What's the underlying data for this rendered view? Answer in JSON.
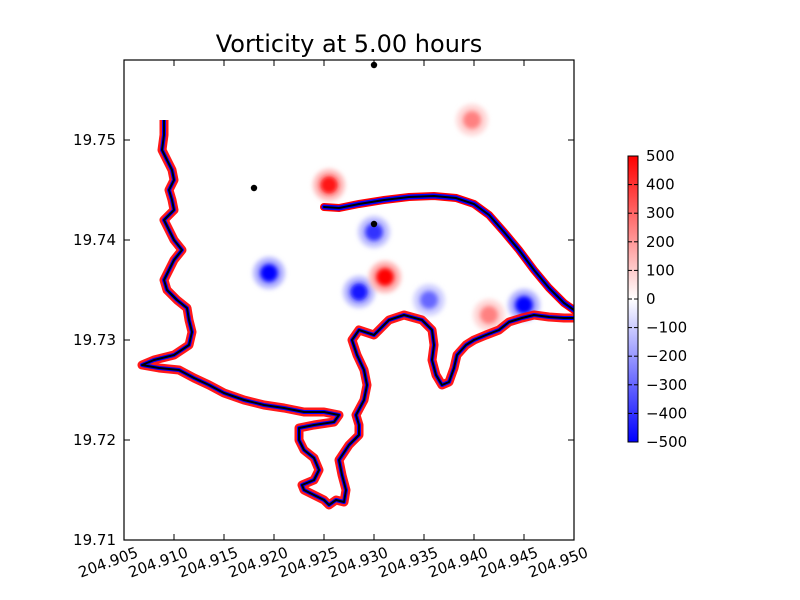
{
  "chart_data": {
    "type": "heatmap",
    "title": "Vorticity at 5.00 hours",
    "xlabel": "",
    "ylabel": "",
    "xlim": [
      204.905,
      204.95
    ],
    "ylim": [
      19.71,
      19.758
    ],
    "x_ticks": [
      "204.905",
      "204.910",
      "204.915",
      "204.920",
      "204.925",
      "204.930",
      "204.935",
      "204.940",
      "204.945",
      "204.950"
    ],
    "y_ticks": [
      "19.71",
      "19.72",
      "19.73",
      "19.74",
      "19.75"
    ],
    "colorbar": {
      "range": [
        -500,
        500
      ],
      "ticks": [
        "500",
        "400",
        "300",
        "200",
        "100",
        "0",
        "−100",
        "−200",
        "−300",
        "−400",
        "−500"
      ],
      "colormap": "bwr",
      "colors": [
        "#0000ff",
        "#ffffff",
        "#ff0000"
      ]
    },
    "markers": [
      {
        "x": 204.93,
        "y": 19.7575
      },
      {
        "x": 204.918,
        "y": 19.7452
      },
      {
        "x": 204.93,
        "y": 19.7416
      }
    ],
    "vortices": [
      {
        "x": 204.9195,
        "y": 19.7367,
        "value": -500
      },
      {
        "x": 204.9285,
        "y": 19.7348,
        "value": -450
      },
      {
        "x": 204.9311,
        "y": 19.7363,
        "value": 500
      },
      {
        "x": 204.93,
        "y": 19.7408,
        "value": -400
      },
      {
        "x": 204.9255,
        "y": 19.7455,
        "value": 450
      },
      {
        "x": 204.9398,
        "y": 19.752,
        "value": 250
      },
      {
        "x": 204.9355,
        "y": 19.734,
        "value": -300
      },
      {
        "x": 204.945,
        "y": 19.7335,
        "value": -500
      },
      {
        "x": 204.9415,
        "y": 19.7325,
        "value": 250
      }
    ],
    "coastline": [
      [
        204.909,
        19.752
      ],
      [
        204.909,
        19.7505
      ],
      [
        204.9088,
        19.749
      ],
      [
        204.9093,
        19.748
      ],
      [
        204.9098,
        19.747
      ],
      [
        204.91,
        19.746
      ],
      [
        204.9095,
        19.745
      ],
      [
        204.9098,
        19.744
      ],
      [
        204.91,
        19.743
      ],
      [
        204.909,
        19.742
      ],
      [
        204.9095,
        19.741
      ],
      [
        204.91,
        19.74
      ],
      [
        204.9108,
        19.739
      ],
      [
        204.91,
        19.738
      ],
      [
        204.9095,
        19.737
      ],
      [
        204.909,
        19.736
      ],
      [
        204.9093,
        19.735
      ],
      [
        204.9103,
        19.734
      ],
      [
        204.9113,
        19.7332
      ],
      [
        204.9115,
        19.732
      ],
      [
        204.9118,
        19.7308
      ],
      [
        204.9115,
        19.7295
      ],
      [
        204.91,
        19.7285
      ],
      [
        204.908,
        19.728
      ],
      [
        204.9068,
        19.7275
      ],
      [
        204.9085,
        19.7272
      ],
      [
        204.9105,
        19.727
      ],
      [
        204.912,
        19.7262
      ],
      [
        204.9135,
        19.7255
      ],
      [
        204.915,
        19.7247
      ],
      [
        204.917,
        19.724
      ],
      [
        204.919,
        19.7235
      ],
      [
        204.921,
        19.7232
      ],
      [
        204.923,
        19.7228
      ],
      [
        204.925,
        19.7228
      ],
      [
        204.9265,
        19.7225
      ],
      [
        204.926,
        19.7218
      ],
      [
        204.924,
        19.7215
      ],
      [
        204.9225,
        19.7212
      ],
      [
        204.9225,
        19.72
      ],
      [
        204.923,
        19.719
      ],
      [
        204.924,
        19.7182
      ],
      [
        204.9245,
        19.717
      ],
      [
        204.924,
        19.716
      ],
      [
        204.9228,
        19.7155
      ],
      [
        204.923,
        19.715
      ],
      [
        204.924,
        19.7145
      ],
      [
        204.925,
        19.714
      ],
      [
        204.9255,
        19.7135
      ],
      [
        204.9262,
        19.714
      ],
      [
        204.927,
        19.7138
      ],
      [
        204.9272,
        19.715
      ],
      [
        204.9268,
        19.7165
      ],
      [
        204.9265,
        19.718
      ],
      [
        204.9275,
        19.7195
      ],
      [
        204.9285,
        19.7205
      ],
      [
        204.9285,
        19.7215
      ],
      [
        204.9282,
        19.7225
      ],
      [
        204.929,
        19.724
      ],
      [
        204.9293,
        19.7255
      ],
      [
        204.929,
        19.727
      ],
      [
        204.9283,
        19.7285
      ],
      [
        204.9278,
        19.73
      ],
      [
        204.9285,
        19.731
      ],
      [
        204.93,
        19.7305
      ],
      [
        204.9315,
        19.732
      ],
      [
        204.933,
        19.7325
      ],
      [
        204.9348,
        19.732
      ],
      [
        204.9358,
        19.731
      ],
      [
        204.936,
        19.7295
      ],
      [
        204.9358,
        19.728
      ],
      [
        204.9362,
        19.7265
      ],
      [
        204.9368,
        19.7255
      ],
      [
        204.9375,
        19.7258
      ],
      [
        204.938,
        19.7272
      ],
      [
        204.9383,
        19.7285
      ],
      [
        204.9392,
        19.7295
      ],
      [
        204.94,
        19.73
      ],
      [
        204.9412,
        19.7305
      ],
      [
        204.9425,
        19.731
      ],
      [
        204.9435,
        19.7318
      ],
      [
        204.9448,
        19.7322
      ],
      [
        204.946,
        19.7325
      ],
      [
        204.9475,
        19.7323
      ],
      [
        204.949,
        19.7322
      ],
      [
        204.95,
        19.7322
      ]
    ],
    "breakwater": [
      [
        204.925,
        19.7433
      ],
      [
        204.9265,
        19.7432
      ],
      [
        204.9285,
        19.7436
      ],
      [
        204.931,
        19.744
      ],
      [
        204.9335,
        19.7443
      ],
      [
        204.936,
        19.7444
      ],
      [
        204.9382,
        19.7442
      ],
      [
        204.94,
        19.7436
      ],
      [
        204.9415,
        19.7425
      ],
      [
        204.943,
        19.7408
      ],
      [
        204.9445,
        19.739
      ],
      [
        204.946,
        19.737
      ],
      [
        204.9475,
        19.7352
      ],
      [
        204.949,
        19.7337
      ],
      [
        204.95,
        19.733
      ]
    ]
  }
}
